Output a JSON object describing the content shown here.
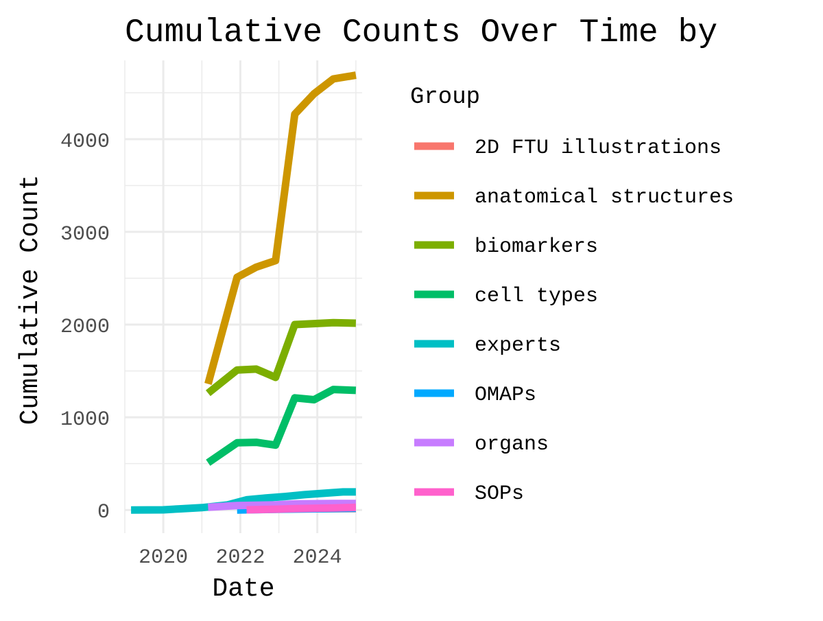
{
  "chart_data": {
    "type": "line",
    "title": "Cumulative Counts Over Time by",
    "xlabel": "Date",
    "ylabel": "Cumulative Count",
    "x_axis_type": "date",
    "xlim": [
      "2019-01-01",
      "2025-03-01"
    ],
    "ylim": [
      -250,
      4850
    ],
    "x_ticks": [
      {
        "date": "2020-01-01",
        "label": "2020"
      },
      {
        "date": "2022-01-01",
        "label": "2022"
      },
      {
        "date": "2024-01-01",
        "label": "2024"
      }
    ],
    "y_ticks": [
      {
        "value": 0,
        "label": "0"
      },
      {
        "value": 1000,
        "label": "1000"
      },
      {
        "value": 2000,
        "label": "2000"
      },
      {
        "value": 3000,
        "label": "3000"
      },
      {
        "value": 4000,
        "label": "4000"
      }
    ],
    "grid": true,
    "legend": {
      "title": "Group",
      "position": "right"
    },
    "series": [
      {
        "name": "2D FTU illustrations",
        "color": "#F8766D",
        "points": [
          [
            "2022-01-01",
            5
          ],
          [
            "2022-06-01",
            8
          ],
          [
            "2023-06-01",
            12
          ],
          [
            "2025-01-01",
            15
          ]
        ]
      },
      {
        "name": "anatomical structures",
        "color": "#CD9600",
        "points": [
          [
            "2021-03-01",
            1360
          ],
          [
            "2021-12-01",
            2510
          ],
          [
            "2022-06-01",
            2620
          ],
          [
            "2022-12-01",
            2690
          ],
          [
            "2023-06-01",
            4270
          ],
          [
            "2023-12-01",
            4490
          ],
          [
            "2024-06-01",
            4650
          ],
          [
            "2025-01-01",
            4690
          ]
        ]
      },
      {
        "name": "biomarkers",
        "color": "#7CAE00",
        "points": [
          [
            "2021-03-01",
            1260
          ],
          [
            "2021-12-01",
            1510
          ],
          [
            "2022-06-01",
            1520
          ],
          [
            "2022-12-01",
            1430
          ],
          [
            "2023-06-01",
            2000
          ],
          [
            "2024-06-01",
            2020
          ],
          [
            "2025-01-01",
            2015
          ]
        ]
      },
      {
        "name": "cell types",
        "color": "#00BE67",
        "points": [
          [
            "2021-03-01",
            510
          ],
          [
            "2021-12-01",
            725
          ],
          [
            "2022-06-01",
            730
          ],
          [
            "2022-12-01",
            700
          ],
          [
            "2023-06-01",
            1210
          ],
          [
            "2023-12-01",
            1190
          ],
          [
            "2024-06-01",
            1300
          ],
          [
            "2025-01-01",
            1290
          ]
        ]
      },
      {
        "name": "experts",
        "color": "#00BFC4",
        "points": [
          [
            "2019-03-01",
            0
          ],
          [
            "2020-01-01",
            2
          ],
          [
            "2020-06-01",
            12
          ],
          [
            "2021-01-01",
            25
          ],
          [
            "2021-09-01",
            55
          ],
          [
            "2022-03-01",
            110
          ],
          [
            "2022-09-01",
            130
          ],
          [
            "2023-03-01",
            145
          ],
          [
            "2023-09-01",
            165
          ],
          [
            "2024-03-01",
            180
          ],
          [
            "2024-09-01",
            195
          ],
          [
            "2025-01-01",
            195
          ]
        ]
      },
      {
        "name": "OMAPs",
        "color": "#00A9FF",
        "points": [
          [
            "2021-12-01",
            0
          ],
          [
            "2022-06-01",
            3
          ],
          [
            "2023-06-01",
            10
          ],
          [
            "2025-01-01",
            18
          ]
        ]
      },
      {
        "name": "organs",
        "color": "#C77CFF",
        "points": [
          [
            "2021-03-01",
            30
          ],
          [
            "2021-12-01",
            48
          ],
          [
            "2022-06-01",
            52
          ],
          [
            "2022-12-01",
            55
          ],
          [
            "2023-06-01",
            65
          ],
          [
            "2024-06-01",
            70
          ],
          [
            "2025-01-01",
            70
          ]
        ]
      },
      {
        "name": "SOPs",
        "color": "#FF61CC",
        "points": [
          [
            "2022-03-01",
            2
          ],
          [
            "2022-12-01",
            8
          ],
          [
            "2023-06-01",
            15
          ],
          [
            "2024-06-01",
            22
          ],
          [
            "2025-01-01",
            28
          ]
        ]
      }
    ]
  }
}
